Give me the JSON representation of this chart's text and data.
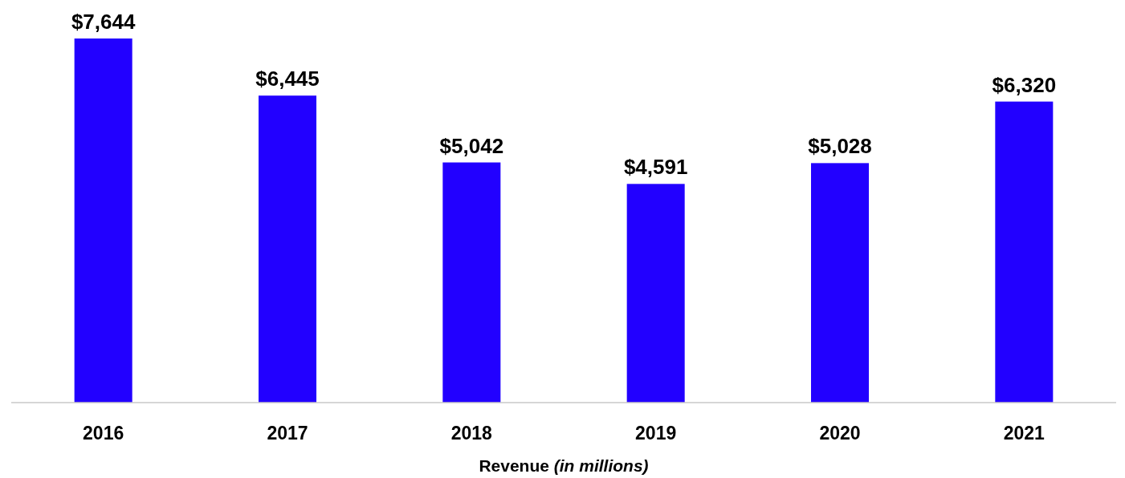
{
  "chart_data": {
    "type": "bar",
    "xlabel": "Revenue (in millions)",
    "categories": [
      "2016",
      "2017",
      "2018",
      "2019",
      "2020",
      "2021"
    ],
    "values": [
      7644,
      6445,
      5042,
      4591,
      5028,
      6320
    ],
    "value_labels": [
      "$7,644",
      "$6,445",
      "$5,042",
      "$4,591",
      "$5,028",
      "$6,320"
    ],
    "color": "#2200ff"
  }
}
